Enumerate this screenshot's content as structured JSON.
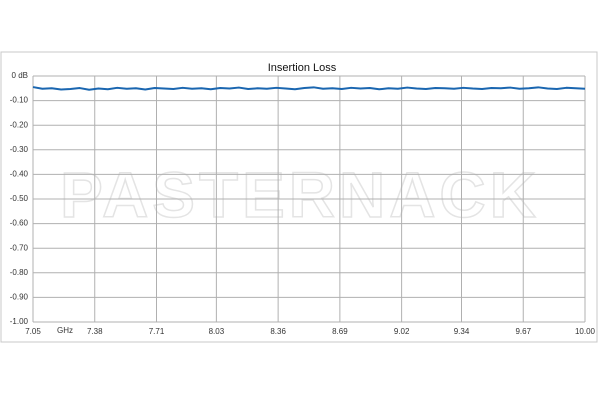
{
  "chart_data": {
    "type": "line",
    "title": "Insertion Loss",
    "watermark": "PASTERNACK",
    "x_label": "GHz",
    "x": [
      7.05,
      7.1,
      7.15,
      7.2,
      7.25,
      7.3,
      7.35,
      7.4,
      7.45,
      7.5,
      7.55,
      7.6,
      7.65,
      7.7,
      7.75,
      7.8,
      7.85,
      7.9,
      7.95,
      8.0,
      8.05,
      8.1,
      8.15,
      8.2,
      8.25,
      8.3,
      8.35,
      8.4,
      8.45,
      8.5,
      8.55,
      8.6,
      8.65,
      8.7,
      8.75,
      8.8,
      8.85,
      8.9,
      8.95,
      9.0,
      9.05,
      9.1,
      9.15,
      9.2,
      9.25,
      9.3,
      9.35,
      9.4,
      9.45,
      9.5,
      9.55,
      9.6,
      9.65,
      9.7,
      9.75,
      9.8,
      9.85,
      9.9,
      9.95,
      10.0
    ],
    "series": [
      {
        "color": "#1a66b0",
        "values": [
          -0.045,
          -0.052,
          -0.05,
          -0.055,
          -0.053,
          -0.049,
          -0.056,
          -0.051,
          -0.054,
          -0.048,
          -0.052,
          -0.05,
          -0.055,
          -0.049,
          -0.051,
          -0.053,
          -0.048,
          -0.052,
          -0.05,
          -0.054,
          -0.049,
          -0.051,
          -0.047,
          -0.053,
          -0.05,
          -0.052,
          -0.048,
          -0.051,
          -0.054,
          -0.049,
          -0.046,
          -0.052,
          -0.05,
          -0.053,
          -0.048,
          -0.051,
          -0.049,
          -0.054,
          -0.05,
          -0.052,
          -0.047,
          -0.051,
          -0.053,
          -0.049,
          -0.05,
          -0.052,
          -0.048,
          -0.051,
          -0.053,
          -0.049,
          -0.05,
          -0.047,
          -0.052,
          -0.05,
          -0.046,
          -0.051,
          -0.053,
          -0.048,
          -0.05,
          -0.052
        ]
      }
    ],
    "xlim": [
      7.05,
      10
    ],
    "xticks": [
      7.05,
      7.38,
      7.71,
      8.03,
      8.36,
      8.69,
      9.02,
      9.34,
      9.67,
      {
        "value": 10,
        "label": "10.00"
      }
    ],
    "ylim": [
      -1,
      0
    ],
    "yticks": [
      {
        "value": 0,
        "label": "0 dB"
      },
      {
        "value": -0.1,
        "label": "-0.10"
      },
      {
        "value": -0.2,
        "label": "-0.20"
      },
      {
        "value": -0.3,
        "label": "-0.30"
      },
      {
        "value": -0.4,
        "label": "-0.40"
      },
      {
        "value": -0.5,
        "label": "-0.50"
      },
      {
        "value": -0.6,
        "label": "-0.60"
      },
      {
        "value": -0.7,
        "label": "-0.70"
      },
      {
        "value": -0.8,
        "label": "-0.80"
      },
      {
        "value": -0.9,
        "label": "-0.90"
      },
      {
        "value": -1,
        "label": "-1.00"
      }
    ],
    "grid": true
  }
}
